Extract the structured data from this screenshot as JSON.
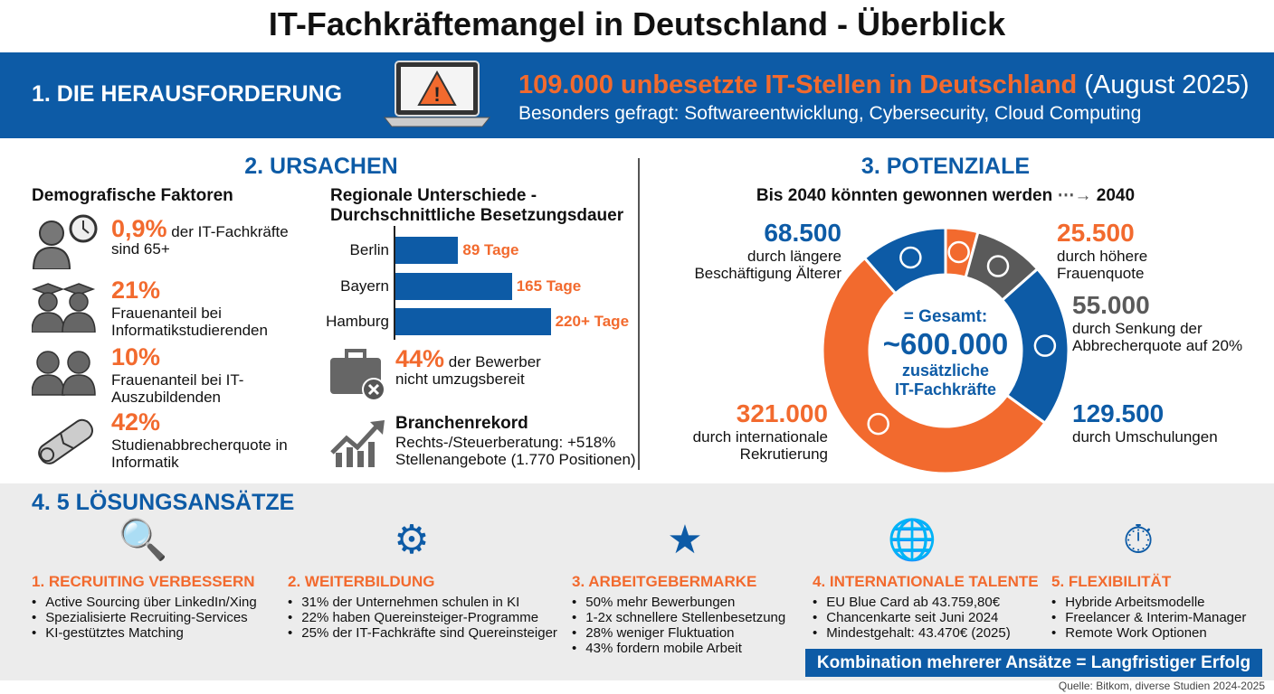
{
  "title": "IT-Fachkräftemangel in Deutschland - Überblick",
  "colors": {
    "blue": "#0d5ba6",
    "orange": "#f26a2e",
    "gray": "#5a5a5a"
  },
  "challenge": {
    "label": "1. DIE HERAUSFORDERUNG",
    "icon": "laptop-warning-icon",
    "headline": "109.000 unbesetzte IT-Stellen in Deutschland",
    "headline_date": "(August 2025)",
    "subline": "Besonders gefragt: Softwareentwicklung, Cybersecurity, Cloud Computing"
  },
  "causes": {
    "title": "2. URSACHEN",
    "demo_title": "Demografische Faktoren",
    "demo": [
      {
        "icon": "elderly-clock-icon",
        "value": "0,9%",
        "text_inline": "der IT-Fachkräfte",
        "text": "sind 65+"
      },
      {
        "icon": "graduates-icon",
        "value": "21%",
        "text_inline": "",
        "text": "Frauenanteil bei Informatikstudierenden"
      },
      {
        "icon": "apprentices-icon",
        "value": "10%",
        "text_inline": "",
        "text": "Frauenanteil bei IT-Auszubildenden"
      },
      {
        "icon": "torn-diploma-icon",
        "value": "42%",
        "text_inline": "",
        "text": "Studienabbrecherquote in Informatik"
      }
    ],
    "regional_title": "Regionale Unterschiede - Durchschnittliche Besetzungsdauer",
    "chart_data": {
      "type": "bar",
      "orientation": "horizontal",
      "categories": [
        "Berlin",
        "Bayern",
        "Hamburg"
      ],
      "values": [
        89,
        165,
        220
      ],
      "labels": [
        "89 Tage",
        "165 Tage",
        "220+ Tage"
      ],
      "title": "Regionale Unterschiede - Durchschnittliche Besetzungsdauer"
    },
    "mobility": {
      "icon": "suitcase-x-icon",
      "value": "44%",
      "text_inline": "der Bewerber",
      "text": "nicht umzugsbereit"
    },
    "record": {
      "icon": "chart-up-icon",
      "title": "Branchenrekord",
      "line1": "Rechts-/Steuerberatung: +518%",
      "line2": "Stellenangebote (1.770 Positionen)"
    }
  },
  "potentials": {
    "title": "3. POTENZIALE",
    "subtitle": "Bis 2040 könnten gewonnen werden",
    "subtitle_target": "2040",
    "center": {
      "line1": "= Gesamt:",
      "value": "~600.000",
      "line2": "zusätzliche",
      "line3": "IT-Fachkräfte"
    },
    "chart_data": {
      "type": "pie",
      "donut": true,
      "segments": [
        {
          "value": 25500,
          "label": "25.500",
          "desc": "durch höhere Frauenquote",
          "color": "#f26a2e",
          "icon": "women-icon"
        },
        {
          "value": 55000,
          "label": "55.000",
          "desc": "durch Senkung der Abbrecherquote auf 20%",
          "color": "#5a5a5a",
          "icon": "graduation-cap-icon"
        },
        {
          "value": 129500,
          "label": "129.500",
          "desc": "durch Umschulungen",
          "color": "#0d5ba6",
          "icon": "gears-diploma-icon"
        },
        {
          "value": 321000,
          "label": "321.000",
          "desc": "durch internationale Rekrutierung",
          "color": "#f26a2e",
          "icon": "globe-arrow-icon"
        },
        {
          "value": 68500,
          "label": "68.500",
          "desc": "durch längere Beschäftigung Älterer",
          "color": "#0d5ba6",
          "icon": "older-worker-icon"
        }
      ]
    }
  },
  "solutions": {
    "title": "4. 5 LÖSUNGSANSÄTZE",
    "items": [
      {
        "icon": "search-person-icon",
        "title": "1. RECRUITING VERBESSERN",
        "bullets": [
          "Active Sourcing über LinkedIn/Xing",
          "Spezialisierte Recruiting-Services",
          "KI-gestütztes Matching"
        ]
      },
      {
        "icon": "head-gears-icon",
        "title": "2. WEITERBILDUNG",
        "bullets": [
          "31% der Unternehmen schulen in KI",
          "22% haben Quereinsteiger-Programme",
          "25% der IT-Fachkräfte sind Quereinsteiger"
        ]
      },
      {
        "icon": "handshake-star-icon",
        "title": "3. ARBEITGEBERMARKE",
        "bullets": [
          "50% mehr Bewerbungen",
          "1-2x schnellere Stellenbesetzung",
          "28% weniger Fluktuation",
          "43% fordern mobile Arbeit"
        ]
      },
      {
        "icon": "passport-globe-icon",
        "title": "4. INTERNATIONALE TALENTE",
        "bullets": [
          "EU Blue Card ab 43.759,80€",
          "Chancenkarte seit Juni 2024",
          "Mindestgehalt: 43.470€ (2025)"
        ]
      },
      {
        "icon": "flexible-person-clock-icon",
        "title": "5. FLEXIBILITÄT",
        "bullets": [
          "Hybride Arbeitsmodelle",
          "Freelancer & Interim-Manager",
          "Remote Work Optionen"
        ]
      }
    ],
    "banner": "Kombination mehrerer Ansätze = Langfristiger Erfolg"
  },
  "source": "Quelle: Bitkom, diverse Studien 2024-2025"
}
